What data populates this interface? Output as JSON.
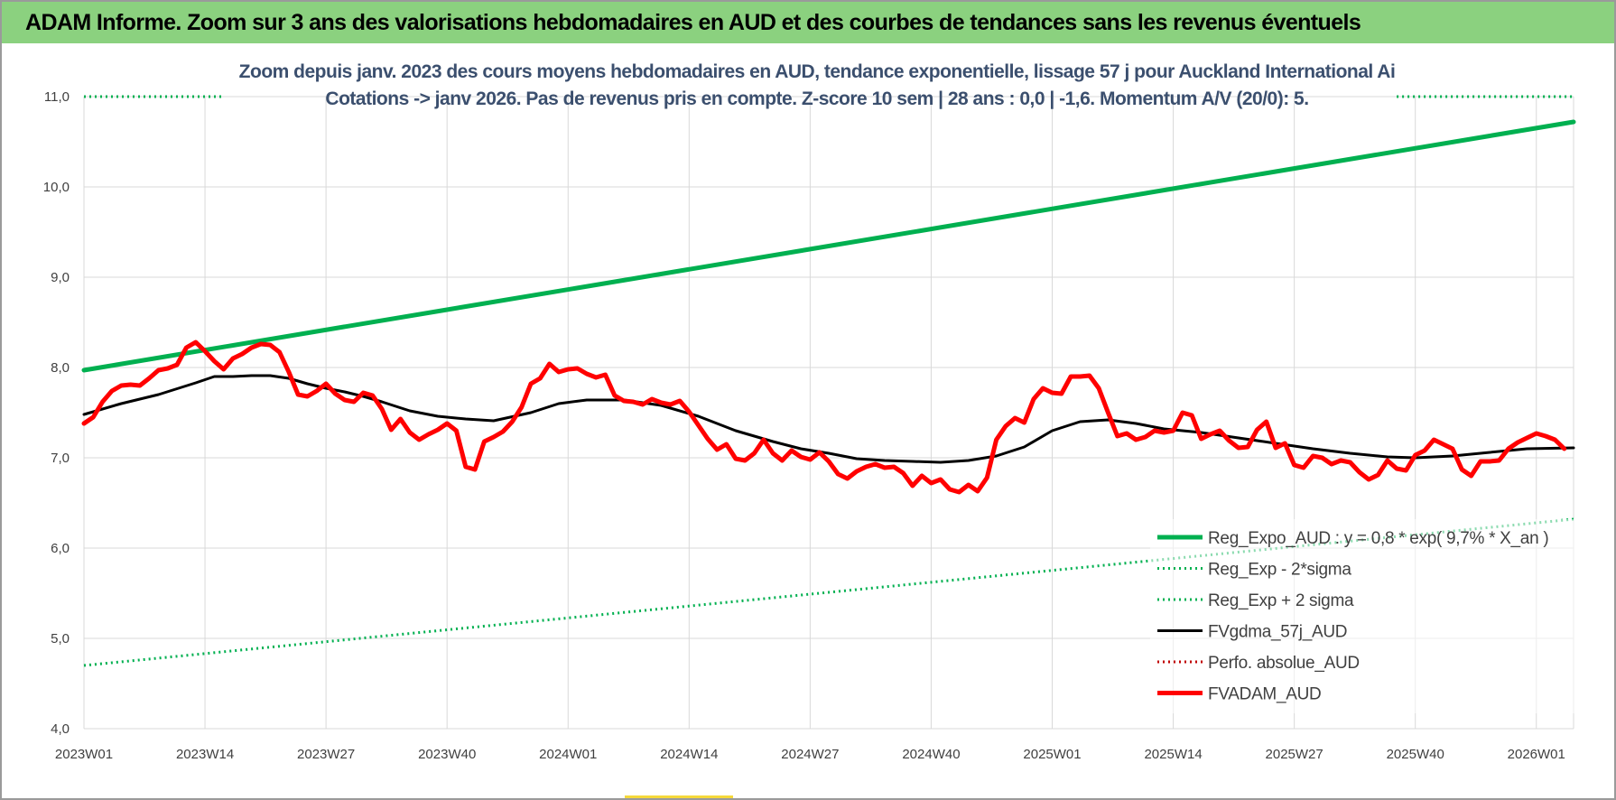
{
  "header": {
    "title": "ADAM Informe. Zoom sur 3 ans des valorisations hebdomadaires en AUD et des courbes de tendances sans les revenus éventuels"
  },
  "colors": {
    "header_bg": "#8bd17f",
    "trend": "#00b050",
    "fv_gdma": "#000000",
    "fv_adam": "#ff0000",
    "perfo": "#c00000",
    "gridline": "#d9d9d9"
  },
  "chart_data": {
    "type": "line",
    "title": "",
    "subtitle_lines": [
      "Zoom depuis janv. 2023 des cours moyens hebdomadaires en AUD, tendance exponentielle, lissage 57 j pour Auckland International Ai",
      "Cotations -> janv 2026. Pas de revenus pris en compte. Z-score 10 sem | 28 ans : 0,0 | -1,6. Momentum A/V (20/0): 5."
    ],
    "xlabel": "",
    "ylabel": "",
    "ylim": [
      4.0,
      11.0
    ],
    "y_ticks": [
      "4,0",
      "5,0",
      "6,0",
      "7,0",
      "8,0",
      "9,0",
      "10,0",
      "11,0"
    ],
    "x_ticks": [
      "2023W01",
      "2023W14",
      "2023W27",
      "2023W40",
      "2024W01",
      "2024W14",
      "2024W27",
      "2024W40",
      "2025W01",
      "2025W14",
      "2025W27",
      "2025W40",
      "2026W01"
    ],
    "x_tick_weeks": [
      0,
      13,
      26,
      39,
      52,
      65,
      78,
      91,
      104,
      117,
      130,
      143,
      156
    ],
    "x_range_weeks": [
      0,
      160
    ],
    "grid": "vertical and horizontal",
    "legend_position": "bottom-right",
    "series": [
      {
        "name": "Reg_Expo_AUD : y = 0,8 * exp( 9,7% * X_an )",
        "style": "solid-thick",
        "color": "#00b050",
        "points": [
          [
            0,
            7.97
          ],
          [
            160,
            10.72
          ]
        ]
      },
      {
        "name": "Reg_Exp - 2*sigma",
        "style": "dotted",
        "color": "#00b050",
        "points": [
          [
            0,
            4.7
          ],
          [
            160,
            6.32
          ]
        ]
      },
      {
        "name": "Reg_Exp + 2 sigma",
        "style": "dotted",
        "color": "#00b050",
        "segments": [
          [
            [
              0,
              11.0
            ],
            [
              15,
              11.0
            ]
          ],
          [
            [
              141,
              11.0
            ],
            [
              160,
              11.0
            ]
          ]
        ]
      },
      {
        "name": "FVgdma_57j_AUD",
        "style": "solid",
        "color": "#000000",
        "points": [
          [
            0,
            7.48
          ],
          [
            4,
            7.6
          ],
          [
            8,
            7.7
          ],
          [
            12,
            7.83
          ],
          [
            14,
            7.9
          ],
          [
            16,
            7.9
          ],
          [
            18,
            7.91
          ],
          [
            20,
            7.91
          ],
          [
            22,
            7.88
          ],
          [
            24,
            7.82
          ],
          [
            26,
            7.77
          ],
          [
            28,
            7.73
          ],
          [
            30,
            7.68
          ],
          [
            32,
            7.62
          ],
          [
            35,
            7.52
          ],
          [
            38,
            7.46
          ],
          [
            41,
            7.43
          ],
          [
            44,
            7.41
          ],
          [
            48,
            7.5
          ],
          [
            51,
            7.6
          ],
          [
            54,
            7.64
          ],
          [
            58,
            7.64
          ],
          [
            62,
            7.58
          ],
          [
            66,
            7.46
          ],
          [
            70,
            7.3
          ],
          [
            74,
            7.18
          ],
          [
            77,
            7.1
          ],
          [
            80,
            7.05
          ],
          [
            83,
            6.99
          ],
          [
            86,
            6.97
          ],
          [
            89,
            6.96
          ],
          [
            92,
            6.95
          ],
          [
            95,
            6.97
          ],
          [
            98,
            7.02
          ],
          [
            101,
            7.12
          ],
          [
            104,
            7.3
          ],
          [
            107,
            7.4
          ],
          [
            110,
            7.42
          ],
          [
            113,
            7.38
          ],
          [
            116,
            7.32
          ],
          [
            120,
            7.28
          ],
          [
            124,
            7.22
          ],
          [
            128,
            7.16
          ],
          [
            132,
            7.1
          ],
          [
            136,
            7.05
          ],
          [
            140,
            7.01
          ],
          [
            143,
            7.0
          ],
          [
            147,
            7.02
          ],
          [
            151,
            7.06
          ],
          [
            155,
            7.1
          ],
          [
            160,
            7.11
          ]
        ]
      },
      {
        "name": "Perfo. absolue_AUD",
        "style": "dotted",
        "color": "#c00000",
        "points": []
      },
      {
        "name": "FVADAM_AUD",
        "style": "solid-thick",
        "color": "#ff0000",
        "points": [
          [
            0,
            7.38
          ],
          [
            1,
            7.45
          ],
          [
            2,
            7.62
          ],
          [
            3,
            7.74
          ],
          [
            4,
            7.8
          ],
          [
            5,
            7.81
          ],
          [
            6,
            7.8
          ],
          [
            7,
            7.88
          ],
          [
            8,
            7.97
          ],
          [
            9,
            7.99
          ],
          [
            10,
            8.03
          ],
          [
            11,
            8.22
          ],
          [
            12,
            8.28
          ],
          [
            13,
            8.18
          ],
          [
            14,
            8.07
          ],
          [
            15,
            7.98
          ],
          [
            16,
            8.1
          ],
          [
            17,
            8.15
          ],
          [
            18,
            8.22
          ],
          [
            19,
            8.26
          ],
          [
            20,
            8.25
          ],
          [
            21,
            8.17
          ],
          [
            22,
            7.95
          ],
          [
            23,
            7.7
          ],
          [
            24,
            7.68
          ],
          [
            25,
            7.74
          ],
          [
            26,
            7.82
          ],
          [
            27,
            7.71
          ],
          [
            28,
            7.64
          ],
          [
            29,
            7.62
          ],
          [
            30,
            7.72
          ],
          [
            31,
            7.69
          ],
          [
            32,
            7.54
          ],
          [
            33,
            7.31
          ],
          [
            34,
            7.43
          ],
          [
            35,
            7.28
          ],
          [
            36,
            7.2
          ],
          [
            37,
            7.26
          ],
          [
            38,
            7.31
          ],
          [
            39,
            7.38
          ],
          [
            40,
            7.3
          ],
          [
            41,
            6.9
          ],
          [
            42,
            6.87
          ],
          [
            43,
            7.18
          ],
          [
            44,
            7.23
          ],
          [
            45,
            7.29
          ],
          [
            46,
            7.4
          ],
          [
            47,
            7.56
          ],
          [
            48,
            7.82
          ],
          [
            49,
            7.88
          ],
          [
            50,
            8.04
          ],
          [
            51,
            7.95
          ],
          [
            52,
            7.98
          ],
          [
            53,
            7.99
          ],
          [
            54,
            7.93
          ],
          [
            55,
            7.89
          ],
          [
            56,
            7.92
          ],
          [
            57,
            7.69
          ],
          [
            58,
            7.63
          ],
          [
            59,
            7.62
          ],
          [
            60,
            7.59
          ],
          [
            61,
            7.65
          ],
          [
            62,
            7.61
          ],
          [
            63,
            7.59
          ],
          [
            64,
            7.63
          ],
          [
            65,
            7.51
          ],
          [
            66,
            7.36
          ],
          [
            67,
            7.21
          ],
          [
            68,
            7.09
          ],
          [
            69,
            7.15
          ],
          [
            70,
            6.99
          ],
          [
            71,
            6.97
          ],
          [
            72,
            7.05
          ],
          [
            73,
            7.2
          ],
          [
            74,
            7.05
          ],
          [
            75,
            6.97
          ],
          [
            76,
            7.08
          ],
          [
            77,
            7.01
          ],
          [
            78,
            6.98
          ],
          [
            79,
            7.06
          ],
          [
            80,
            6.96
          ],
          [
            81,
            6.82
          ],
          [
            82,
            6.77
          ],
          [
            83,
            6.85
          ],
          [
            84,
            6.9
          ],
          [
            85,
            6.93
          ],
          [
            86,
            6.89
          ],
          [
            87,
            6.9
          ],
          [
            88,
            6.83
          ],
          [
            89,
            6.69
          ],
          [
            90,
            6.8
          ],
          [
            91,
            6.72
          ],
          [
            92,
            6.76
          ],
          [
            93,
            6.65
          ],
          [
            94,
            6.62
          ],
          [
            95,
            6.7
          ],
          [
            96,
            6.63
          ],
          [
            97,
            6.78
          ],
          [
            98,
            7.2
          ],
          [
            99,
            7.35
          ],
          [
            100,
            7.44
          ],
          [
            101,
            7.39
          ],
          [
            102,
            7.65
          ],
          [
            103,
            7.77
          ],
          [
            104,
            7.72
          ],
          [
            105,
            7.71
          ],
          [
            106,
            7.9
          ],
          [
            107,
            7.9
          ],
          [
            108,
            7.91
          ],
          [
            109,
            7.77
          ],
          [
            110,
            7.5
          ],
          [
            111,
            7.24
          ],
          [
            112,
            7.27
          ],
          [
            113,
            7.2
          ],
          [
            114,
            7.23
          ],
          [
            115,
            7.3
          ],
          [
            116,
            7.28
          ],
          [
            117,
            7.3
          ],
          [
            118,
            7.5
          ],
          [
            119,
            7.47
          ],
          [
            120,
            7.21
          ],
          [
            121,
            7.26
          ],
          [
            122,
            7.3
          ],
          [
            123,
            7.19
          ],
          [
            124,
            7.11
          ],
          [
            125,
            7.12
          ],
          [
            126,
            7.31
          ],
          [
            127,
            7.4
          ],
          [
            128,
            7.11
          ],
          [
            129,
            7.16
          ],
          [
            130,
            6.92
          ],
          [
            131,
            6.89
          ],
          [
            132,
            7.02
          ],
          [
            133,
            7.0
          ],
          [
            134,
            6.93
          ],
          [
            135,
            6.97
          ],
          [
            136,
            6.95
          ],
          [
            137,
            6.84
          ],
          [
            138,
            6.76
          ],
          [
            139,
            6.81
          ],
          [
            140,
            6.97
          ],
          [
            141,
            6.88
          ],
          [
            142,
            6.86
          ],
          [
            143,
            7.03
          ],
          [
            144,
            7.08
          ],
          [
            145,
            7.2
          ],
          [
            146,
            7.15
          ],
          [
            147,
            7.1
          ],
          [
            148,
            6.87
          ],
          [
            149,
            6.8
          ],
          [
            150,
            6.96
          ],
          [
            151,
            6.96
          ],
          [
            152,
            6.97
          ],
          [
            153,
            7.1
          ],
          [
            154,
            7.17
          ],
          [
            155,
            7.22
          ],
          [
            156,
            7.27
          ],
          [
            157,
            7.24
          ],
          [
            158,
            7.2
          ],
          [
            159,
            7.1
          ]
        ]
      }
    ]
  }
}
